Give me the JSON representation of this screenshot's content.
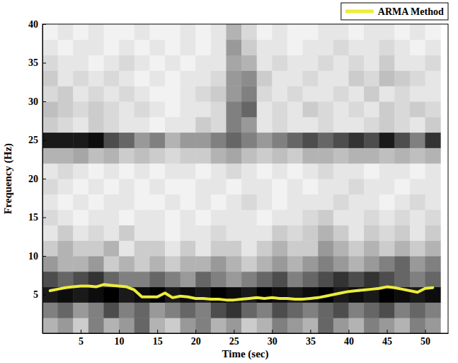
{
  "chart_data": {
    "type": "heatmap",
    "x_label": "Time (sec)",
    "y_label": "Frequency (Hz)",
    "xlim": [
      0,
      53
    ],
    "ylim": [
      0,
      40
    ],
    "xticks": [
      5,
      10,
      15,
      20,
      25,
      30,
      35,
      40,
      45,
      50
    ],
    "yticks": [
      5,
      10,
      15,
      20,
      25,
      30,
      35,
      40
    ],
    "legend": "top",
    "x_edges": [
      0,
      2,
      4,
      6,
      8,
      10,
      12,
      14,
      16,
      18,
      20,
      22,
      24,
      26,
      28,
      30,
      32,
      34,
      36,
      38,
      40,
      42,
      44,
      46,
      48,
      50,
      52
    ],
    "y_edges": [
      0,
      2,
      4,
      6,
      8,
      10,
      12,
      14,
      16,
      18,
      20,
      22,
      24,
      26,
      28,
      30,
      32,
      34,
      36,
      38,
      40
    ],
    "zlim": [
      0,
      1
    ],
    "z": [
      [
        0.3,
        0.4,
        0.2,
        0.5,
        0.3,
        0.4,
        0.6,
        0.3,
        0.2,
        0.4,
        0.5,
        0.3,
        0.4,
        0.2,
        0.3,
        0.5,
        0.4,
        0.3,
        0.6,
        0.4,
        0.3,
        0.5,
        0.4,
        0.3,
        0.5,
        0.4
      ],
      [
        0.5,
        0.6,
        0.4,
        0.5,
        0.7,
        0.5,
        0.6,
        0.4,
        0.5,
        0.6,
        0.5,
        0.7,
        0.8,
        0.6,
        0.5,
        0.7,
        0.6,
        0.5,
        0.6,
        0.7,
        0.5,
        0.6,
        0.7,
        0.5,
        0.6,
        0.5
      ],
      [
        0.9,
        0.95,
        0.9,
        0.95,
        1,
        0.9,
        0.95,
        1,
        0.9,
        0.95,
        0.9,
        1,
        0.95,
        0.9,
        1,
        0.95,
        0.9,
        0.95,
        1,
        0.9,
        0.95,
        0.9,
        1,
        0.95,
        0.9,
        0.95
      ],
      [
        0.7,
        0.6,
        0.7,
        0.8,
        0.6,
        0.5,
        0.5,
        0.6,
        0.5,
        0.4,
        0.6,
        0.5,
        0.4,
        0.5,
        0.6,
        0.7,
        0.5,
        0.6,
        0.7,
        0.8,
        0.7,
        0.8,
        0.7,
        0.6,
        0.5,
        0.6
      ],
      [
        0.4,
        0.3,
        0.3,
        0.4,
        0.2,
        0.3,
        0.2,
        0.3,
        0.2,
        0.3,
        0.3,
        0.4,
        0.3,
        0.2,
        0.3,
        0.4,
        0.3,
        0.4,
        0.5,
        0.4,
        0.3,
        0.4,
        0.5,
        0.6,
        0.4,
        0.5
      ],
      [
        0.2,
        0.3,
        0.2,
        0.2,
        0.3,
        0.1,
        0.2,
        0.2,
        0.1,
        0.2,
        0.1,
        0.2,
        0.2,
        0.1,
        0.2,
        0.3,
        0.2,
        0.2,
        0.4,
        0.3,
        0.2,
        0.3,
        0.2,
        0.3,
        0.2,
        0.3
      ],
      [
        0.1,
        0.2,
        0.1,
        0.15,
        0.1,
        0.2,
        0.1,
        0.1,
        0.05,
        0.1,
        0.1,
        0.15,
        0.1,
        0.1,
        0.1,
        0.2,
        0.15,
        0.2,
        0.3,
        0.2,
        0.1,
        0.2,
        0.15,
        0.2,
        0.1,
        0.2
      ],
      [
        0.15,
        0.1,
        0.05,
        0.1,
        0.1,
        0.05,
        0.1,
        0.1,
        0.05,
        0.1,
        0.05,
        0.1,
        0.1,
        0.1,
        0.05,
        0.1,
        0.1,
        0.15,
        0.2,
        0.1,
        0.1,
        0.15,
        0.1,
        0.15,
        0.1,
        0.15
      ],
      [
        0.1,
        0.05,
        0.1,
        0.05,
        0.1,
        0.1,
        0.05,
        0.05,
        0.1,
        0.05,
        0.1,
        0.05,
        0.1,
        0.15,
        0.1,
        0.05,
        0.1,
        0.1,
        0.1,
        0.15,
        0.1,
        0.1,
        0.05,
        0.1,
        0.15,
        0.1
      ],
      [
        0.15,
        0.1,
        0.05,
        0.1,
        0.05,
        0.1,
        0.05,
        0.1,
        0.05,
        0.05,
        0.1,
        0.1,
        0.05,
        0.1,
        0.1,
        0.05,
        0.1,
        0.05,
        0.1,
        0.1,
        0.15,
        0.1,
        0.1,
        0.05,
        0.1,
        0.1
      ],
      [
        0.1,
        0.15,
        0.1,
        0.05,
        0.1,
        0.05,
        0.1,
        0.05,
        0.1,
        0.1,
        0.05,
        0.1,
        0.15,
        0.1,
        0.05,
        0.1,
        0.05,
        0.1,
        0.15,
        0.1,
        0.1,
        0.05,
        0.1,
        0.1,
        0.05,
        0.1
      ],
      [
        0.3,
        0.3,
        0.35,
        0.25,
        0.3,
        0.2,
        0.25,
        0.2,
        0.15,
        0.2,
        0.2,
        0.3,
        0.35,
        0.25,
        0.2,
        0.25,
        0.2,
        0.3,
        0.3,
        0.25,
        0.3,
        0.3,
        0.25,
        0.3,
        0.25,
        0.3
      ],
      [
        0.9,
        0.9,
        0.9,
        0.95,
        0.7,
        0.6,
        0.4,
        0.5,
        0.3,
        0.4,
        0.4,
        0.5,
        0.6,
        0.5,
        0.4,
        0.5,
        0.6,
        0.7,
        0.6,
        0.7,
        0.8,
        0.7,
        0.9,
        0.7,
        0.5,
        0.8
      ],
      [
        0.2,
        0.15,
        0.1,
        0.2,
        0.15,
        0.1,
        0.1,
        0.05,
        0.1,
        0.1,
        0.2,
        0.15,
        0.5,
        0.4,
        0.1,
        0.15,
        0.1,
        0.1,
        0.15,
        0.1,
        0.1,
        0.15,
        0.2,
        0.15,
        0.1,
        0.2
      ],
      [
        0.25,
        0.2,
        0.15,
        0.2,
        0.15,
        0.1,
        0.15,
        0.1,
        0.05,
        0.1,
        0.1,
        0.15,
        0.5,
        0.6,
        0.1,
        0.15,
        0.1,
        0.2,
        0.15,
        0.1,
        0.15,
        0.1,
        0.2,
        0.15,
        0.2,
        0.15
      ],
      [
        0.15,
        0.2,
        0.1,
        0.15,
        0.1,
        0.15,
        0.1,
        0.05,
        0.05,
        0.1,
        0.15,
        0.2,
        0.4,
        0.5,
        0.15,
        0.1,
        0.15,
        0.1,
        0.1,
        0.15,
        0.1,
        0.2,
        0.1,
        0.15,
        0.1,
        0.1
      ],
      [
        0.2,
        0.1,
        0.15,
        0.1,
        0.15,
        0.1,
        0.05,
        0.1,
        0.05,
        0.1,
        0.1,
        0.15,
        0.4,
        0.45,
        0.2,
        0.1,
        0.1,
        0.15,
        0.1,
        0.1,
        0.2,
        0.15,
        0.25,
        0.2,
        0.15,
        0.1
      ],
      [
        0.15,
        0.1,
        0.1,
        0.05,
        0.1,
        0.15,
        0.1,
        0.05,
        0.1,
        0.05,
        0.1,
        0.1,
        0.35,
        0.3,
        0.1,
        0.15,
        0.1,
        0.1,
        0.15,
        0.1,
        0.15,
        0.1,
        0.2,
        0.1,
        0.1,
        0.15
      ],
      [
        0.1,
        0.05,
        0.1,
        0.1,
        0.05,
        0.1,
        0.05,
        0.1,
        0.05,
        0.1,
        0.05,
        0.1,
        0.4,
        0.2,
        0.1,
        0.1,
        0.05,
        0.1,
        0.1,
        0.15,
        0.1,
        0.1,
        0.15,
        0.1,
        0.05,
        0.1
      ],
      [
        0.05,
        0.1,
        0.05,
        0.1,
        0.05,
        0.05,
        0.1,
        0.05,
        0.05,
        0.1,
        0.05,
        0.1,
        0.3,
        0.15,
        0.05,
        0.1,
        0.05,
        0.05,
        0.1,
        0.1,
        0.05,
        0.1,
        0.1,
        0.05,
        0.1,
        0.05
      ]
    ],
    "series": [
      {
        "name": "ARMA Method",
        "type": "line",
        "color": "#ecec3c",
        "x": [
          1,
          2,
          3,
          4,
          5,
          6,
          7,
          8,
          9,
          10,
          11,
          12,
          13,
          14,
          15,
          16,
          17,
          18,
          19,
          20,
          21,
          22,
          23,
          24,
          25,
          26,
          27,
          28,
          29,
          30,
          31,
          32,
          33,
          34,
          35,
          36,
          37,
          38,
          39,
          40,
          41,
          42,
          43,
          44,
          45,
          46,
          47,
          48,
          49,
          50,
          51
        ],
        "values": [
          5.5,
          5.7,
          5.9,
          6.0,
          6.1,
          6.1,
          6.0,
          6.3,
          6.2,
          6.1,
          6.0,
          5.6,
          4.7,
          4.7,
          4.7,
          5.2,
          4.6,
          4.8,
          4.7,
          4.5,
          4.5,
          4.4,
          4.4,
          4.3,
          4.3,
          4.4,
          4.5,
          4.6,
          4.5,
          4.6,
          4.5,
          4.5,
          4.4,
          4.4,
          4.5,
          4.6,
          4.8,
          5.0,
          5.2,
          5.4,
          5.5,
          5.6,
          5.7,
          5.8,
          6.0,
          5.9,
          5.7,
          5.5,
          5.3,
          5.8,
          5.9
        ]
      }
    ]
  }
}
